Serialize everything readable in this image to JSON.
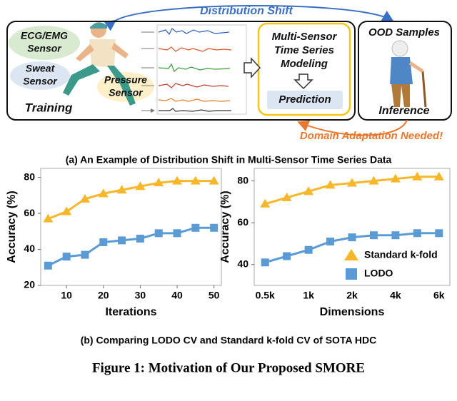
{
  "diagram": {
    "top_arrow": "Distribution Shift",
    "sensors": [
      [
        "ECG/EMG",
        "Sensor"
      ],
      [
        "Sweat",
        "Sensor"
      ],
      [
        "Pressure",
        "Sensor"
      ]
    ],
    "training": "Training",
    "model": [
      "Multi-Sensor",
      "Time Series",
      "Modeling"
    ],
    "prediction": "Prediction",
    "ood": "OOD Samples",
    "inference": "Inference",
    "adaptation": "Domain Adaptation Needed!"
  },
  "captions": {
    "a": "(a) An Example of Distribution Shift in Multi-Sensor Time Series Data",
    "b": "(b) Comparing LODO CV and Standard k-fold CV of SOTA HDC",
    "figure": "Figure 1: Motivation of Our Proposed SMORE"
  },
  "chart_data": [
    {
      "type": "line",
      "x_label": "Iterations",
      "y_label": "Accuracy (%)",
      "x": [
        5,
        10,
        15,
        20,
        25,
        30,
        35,
        40,
        45,
        50
      ],
      "xlim": [
        3,
        52
      ],
      "xticks": [
        10,
        20,
        30,
        40,
        50
      ],
      "ylim": [
        20,
        85
      ],
      "yticks": [
        20,
        40,
        60,
        80
      ],
      "series": [
        {
          "color": "#f8b62a",
          "marker": "triangle",
          "values": [
            57,
            61,
            68,
            71,
            73,
            75,
            77,
            78,
            78,
            78
          ]
        },
        {
          "color": "#5b9bd5",
          "marker": "square",
          "values": [
            31,
            36,
            37,
            44,
            45,
            46,
            49,
            49,
            52,
            52
          ]
        }
      ]
    },
    {
      "type": "line",
      "x_label": "Dimensions",
      "y_label": "Accuracy (%)",
      "categories": [
        "0.5k",
        null,
        "1k",
        null,
        "2k",
        null,
        "4k",
        null,
        "6k"
      ],
      "ylim": [
        30,
        86
      ],
      "yticks": [
        40,
        60,
        80
      ],
      "legend": "lower right",
      "series": [
        {
          "name": "Standard k-fold",
          "color": "#f8b62a",
          "marker": "triangle",
          "values": [
            69,
            72,
            75,
            78,
            79,
            80,
            81,
            82,
            82
          ]
        },
        {
          "name": "LODO",
          "color": "#5b9bd5",
          "marker": "square",
          "values": [
            41,
            44,
            47,
            51,
            53,
            54,
            54,
            55,
            55
          ]
        }
      ]
    }
  ]
}
